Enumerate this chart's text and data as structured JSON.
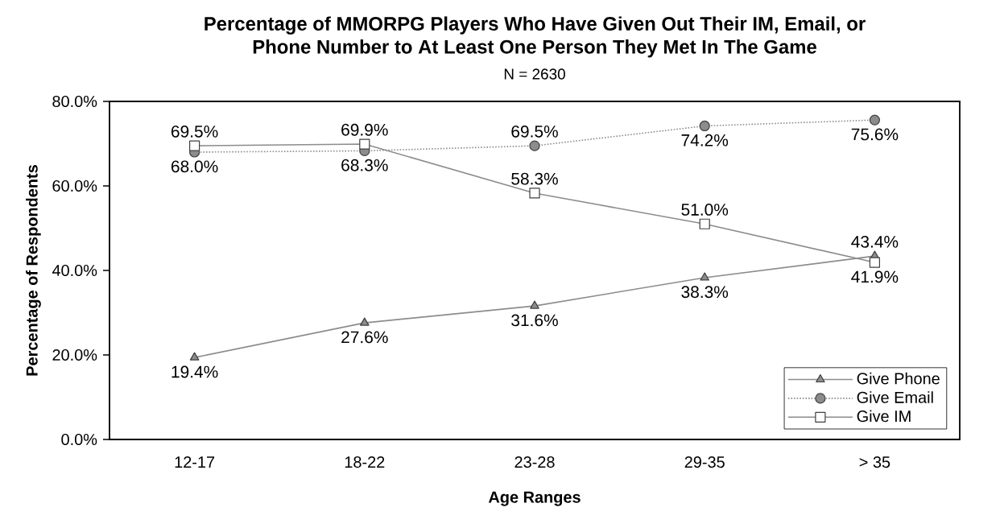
{
  "chart_data": {
    "type": "line",
    "title": "Percentage of MMORPG Players Who Have Given Out Their IM, Email, or Phone Number to At Least One Person They Met In The Game",
    "subtitle": "N = 2630",
    "xlabel": "Age Ranges",
    "ylabel": "Percentage of Respondents",
    "categories": [
      "12-17",
      "18-22",
      "23-28",
      "29-35",
      "> 35"
    ],
    "series": [
      {
        "name": "Give Phone",
        "color": "#8c8c8c",
        "marker": "triangle",
        "line_style": "solid",
        "values": [
          19.4,
          27.6,
          31.6,
          38.3,
          43.4
        ],
        "value_labels": [
          "19.4%",
          "27.6%",
          "31.6%",
          "38.3%",
          "43.4%"
        ]
      },
      {
        "name": "Give Email",
        "color": "#8c8c8c",
        "marker": "circle",
        "line_style": "dotted",
        "values": [
          68.0,
          68.3,
          69.5,
          74.2,
          75.6
        ],
        "value_labels": [
          "68.0%",
          "68.3%",
          "69.5%",
          "74.2%",
          "75.6%"
        ]
      },
      {
        "name": "Give IM",
        "color": "#8c8c8c",
        "marker": "square",
        "line_style": "solid",
        "values": [
          69.5,
          69.9,
          58.3,
          51.0,
          41.9
        ],
        "value_labels": [
          "69.5%",
          "69.9%",
          "58.3%",
          "51.0%",
          "41.9%"
        ]
      }
    ],
    "ylim": [
      0,
      80
    ],
    "yticks": [
      {
        "value": 0,
        "label": "0.0%"
      },
      {
        "value": 20,
        "label": "20.0%"
      },
      {
        "value": 40,
        "label": "40.0%"
      },
      {
        "value": 60,
        "label": "60.0%"
      },
      {
        "value": 80,
        "label": "80.0%"
      }
    ],
    "legend": "bottom right"
  }
}
